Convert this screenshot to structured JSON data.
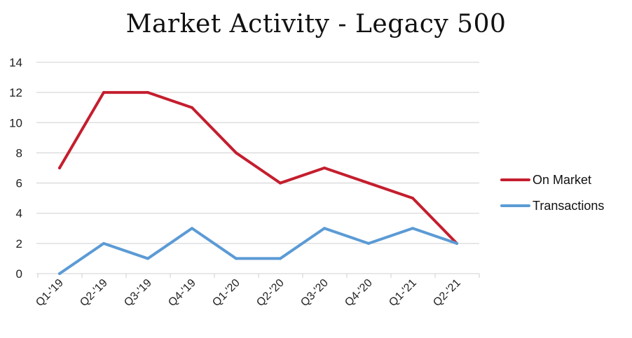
{
  "chart_data": {
    "type": "line",
    "title": "Market Activity - Legacy 500",
    "categories": [
      "Q1-'19",
      "Q2-'19",
      "Q3-'19",
      "Q4-'19",
      "Q1-'20",
      "Q2-'20",
      "Q3-'20",
      "Q4-'20",
      "Q1-'21",
      "Q2-'21"
    ],
    "series": [
      {
        "name": "On Market",
        "color": "#c41e2e",
        "values": [
          7,
          12,
          12,
          11,
          8,
          6,
          7,
          6,
          5,
          2
        ]
      },
      {
        "name": "Transactions",
        "color": "#5b9bd5",
        "values": [
          0,
          2,
          1,
          3,
          1,
          1,
          3,
          2,
          3,
          2
        ]
      }
    ],
    "yticks": [
      "0",
      "2",
      "4",
      "6",
      "8",
      "10",
      "12",
      "14"
    ],
    "ylim": [
      0,
      14
    ],
    "grid": true,
    "legend_position": "right"
  }
}
